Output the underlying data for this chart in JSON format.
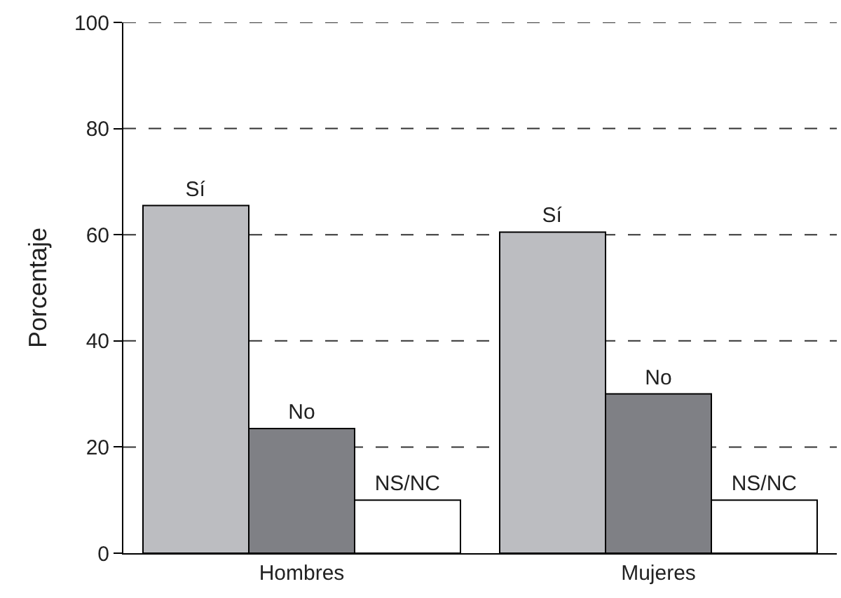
{
  "chart_data": {
    "type": "bar",
    "ylabel": "Porcentaje",
    "categories": [
      "Hombres",
      "Mujeres"
    ],
    "series": [
      {
        "name": "Sí",
        "color": "#bcbdc1",
        "values": [
          65.5,
          60.5
        ]
      },
      {
        "name": "No",
        "color": "#7f8085",
        "values": [
          23.5,
          30
        ]
      },
      {
        "name": "NS/NC",
        "color": "#ffffff",
        "values": [
          10,
          10
        ]
      }
    ],
    "ylim": [
      0,
      100
    ],
    "yticks": [
      0,
      20,
      40,
      60,
      80,
      100
    ],
    "grid": "y",
    "legend": false
  }
}
